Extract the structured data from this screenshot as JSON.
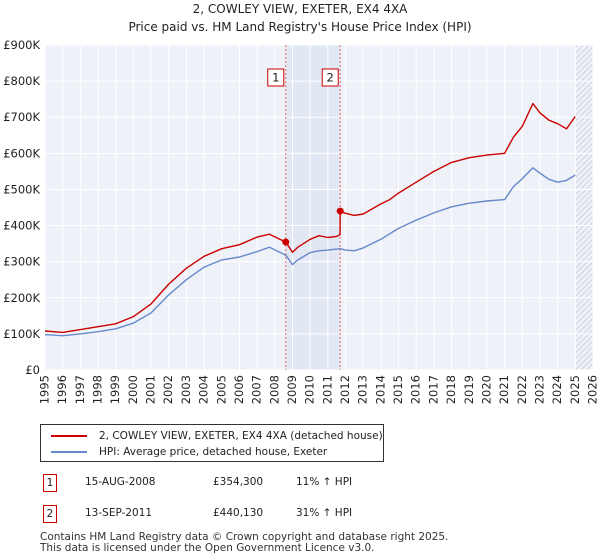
{
  "chart_data": {
    "type": "line",
    "title": "2, COWLEY VIEW, EXETER, EX4 4XA",
    "subtitle": "Price paid vs. HM Land Registry's House Price Index (HPI)",
    "xlim": [
      1995,
      2026
    ],
    "ylim": [
      0,
      900000
    ],
    "x_ticks": [
      "1995",
      "1996",
      "1997",
      "1998",
      "1999",
      "2000",
      "2001",
      "2002",
      "2003",
      "2004",
      "2005",
      "2006",
      "2007",
      "2008",
      "2009",
      "2010",
      "2011",
      "2012",
      "2013",
      "2014",
      "2015",
      "2016",
      "2017",
      "2018",
      "2019",
      "2020",
      "2021",
      "2022",
      "2023",
      "2024",
      "2025",
      "2026"
    ],
    "y_ticks": [
      {
        "value": 0,
        "label": "£0"
      },
      {
        "value": 100000,
        "label": "£100K"
      },
      {
        "value": 200000,
        "label": "£200K"
      },
      {
        "value": 300000,
        "label": "£300K"
      },
      {
        "value": 400000,
        "label": "£400K"
      },
      {
        "value": 500000,
        "label": "£500K"
      },
      {
        "value": 600000,
        "label": "£600K"
      },
      {
        "value": 700000,
        "label": "£700K"
      },
      {
        "value": 800000,
        "label": "£800K"
      },
      {
        "value": 900000,
        "label": "£900K"
      }
    ],
    "grid": true,
    "shaded_sale_region": [
      2008.62,
      2011.7
    ],
    "forecast_from": 2025.0,
    "series": [
      {
        "name": "2, COWLEY VIEW, EXETER, EX4 4XA (detached house)",
        "color": "#cc0000",
        "x": [
          1995.0,
          1996.0,
          1997.0,
          1998.0,
          1999.0,
          2000.0,
          2001.0,
          2002.0,
          2003.0,
          2004.0,
          2005.0,
          2006.0,
          2007.0,
          2007.7,
          2008.62,
          2009.0,
          2009.3,
          2010.0,
          2010.5,
          2011.0,
          2011.5,
          2011.69,
          2011.7,
          2012.0,
          2012.5,
          2013.0,
          2014.0,
          2014.5,
          2015.0,
          2016.0,
          2017.0,
          2018.0,
          2019.0,
          2020.0,
          2021.0,
          2021.5,
          2022.0,
          2022.6,
          2023.0,
          2023.5,
          2024.0,
          2024.5,
          2025.0
        ],
        "values": [
          108000,
          104000,
          112000,
          120000,
          128000,
          148000,
          183000,
          238000,
          282000,
          315000,
          336000,
          347000,
          368000,
          376000,
          354300,
          326000,
          340000,
          362000,
          372000,
          367000,
          370000,
          375000,
          440130,
          434000,
          428000,
          432000,
          460000,
          472000,
          490000,
          520000,
          550000,
          575000,
          588000,
          595000,
          600000,
          645000,
          675000,
          738000,
          712000,
          692000,
          682000,
          668000,
          702000
        ]
      },
      {
        "name": "HPI: Average price, detached house, Exeter",
        "color": "#6688cc",
        "x": [
          1995.0,
          1996.0,
          1997.0,
          1998.0,
          1999.0,
          2000.0,
          2001.0,
          2002.0,
          2003.0,
          2004.0,
          2005.0,
          2006.0,
          2007.0,
          2007.7,
          2008.62,
          2009.0,
          2009.3,
          2010.0,
          2010.5,
          2011.0,
          2011.7,
          2012.0,
          2012.5,
          2013.0,
          2014.0,
          2015.0,
          2016.0,
          2017.0,
          2018.0,
          2019.0,
          2020.0,
          2021.0,
          2021.5,
          2022.0,
          2022.6,
          2023.0,
          2023.5,
          2024.0,
          2024.5,
          2025.0
        ],
        "values": [
          98000,
          95000,
          100000,
          106000,
          114000,
          130000,
          158000,
          208000,
          250000,
          285000,
          305000,
          313000,
          328000,
          340000,
          318000,
          292000,
          305000,
          325000,
          330000,
          332000,
          336000,
          332000,
          330000,
          338000,
          362000,
          392000,
          415000,
          435000,
          452000,
          462000,
          468000,
          472000,
          508000,
          530000,
          560000,
          545000,
          528000,
          520000,
          525000,
          540000
        ]
      }
    ],
    "annotations": [
      {
        "label": "1",
        "x": 2008.62,
        "value": 354300
      },
      {
        "label": "2",
        "x": 2011.7,
        "value": 440130
      }
    ]
  },
  "legend": {
    "items": [
      {
        "label": "2, COWLEY VIEW, EXETER, EX4 4XA (detached house)",
        "color": "#cc0000"
      },
      {
        "label": "HPI: Average price, detached house, Exeter",
        "color": "#6688cc"
      }
    ]
  },
  "sales": [
    {
      "num": "1",
      "date": "15-AUG-2008",
      "price": "£354,300",
      "hpi": "11% ↑ HPI"
    },
    {
      "num": "2",
      "date": "13-SEP-2011",
      "price": "£440,130",
      "hpi": "31% ↑ HPI"
    }
  ],
  "footer": {
    "line1": "Contains HM Land Registry data © Crown copyright and database right 2025.",
    "line2": "This data is licensed under the Open Government Licence v3.0."
  }
}
